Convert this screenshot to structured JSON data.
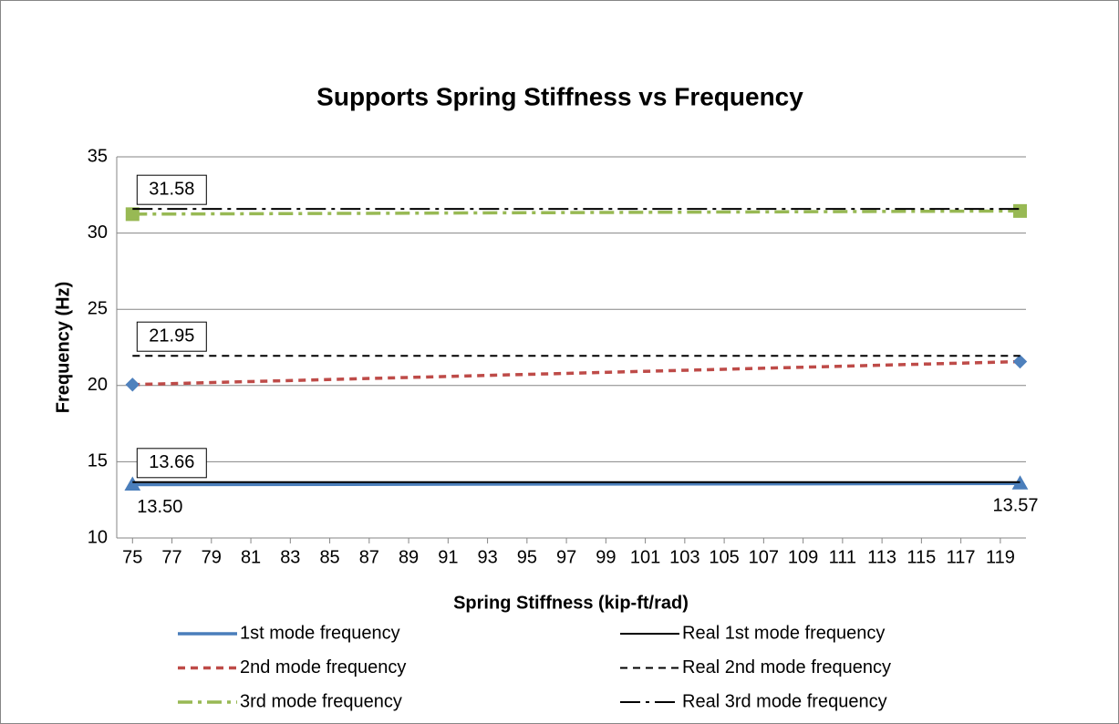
{
  "chart_data": {
    "type": "line",
    "title": "Supports Spring Stiffness vs Frequency",
    "x_label": "Spring Stiffness (kip-ft/rad)",
    "y_label": "Frequency (Hz)",
    "x": [
      75,
      120
    ],
    "xlim": [
      74.2,
      120.3
    ],
    "xticks": [
      75,
      77,
      79,
      81,
      83,
      85,
      87,
      89,
      91,
      93,
      95,
      97,
      99,
      101,
      103,
      105,
      107,
      109,
      111,
      113,
      115,
      117,
      119
    ],
    "ylim": [
      10,
      35
    ],
    "yticks": [
      10,
      15,
      20,
      25,
      30,
      35
    ],
    "grid": true,
    "legend": "bottom",
    "series": [
      {
        "name": "1st mode frequency",
        "color": "#4a7ebb",
        "dash": "solid",
        "marker": "triangle",
        "values": [
          13.5,
          13.57
        ],
        "value_labels": [
          "13.50",
          "13.57"
        ]
      },
      {
        "name": "Real 1st mode frequency",
        "color": "#000000",
        "dash": "solid",
        "boxed": true,
        "values": [
          13.66,
          13.66
        ],
        "value_labels": [
          "13.66",
          null
        ]
      },
      {
        "name": "2nd mode frequency",
        "color": "#be4b48",
        "dash": "dash",
        "marker": "diamond",
        "values": [
          20.06,
          21.57
        ]
      },
      {
        "name": "Real 2nd mode frequency",
        "color": "#000000",
        "dash": "dash",
        "boxed": true,
        "values": [
          21.95,
          21.95
        ],
        "value_labels": [
          "21.95",
          null
        ]
      },
      {
        "name": "3rd mode frequency",
        "color": "#98b954",
        "dash": "dashdot",
        "marker": "square",
        "values": [
          31.24,
          31.45
        ]
      },
      {
        "name": "Real 3rd mode frequency",
        "color": "#000000",
        "dash": "longdashdot",
        "boxed": true,
        "values": [
          31.58,
          31.58
        ],
        "value_labels": [
          "31.58",
          null
        ]
      }
    ]
  }
}
